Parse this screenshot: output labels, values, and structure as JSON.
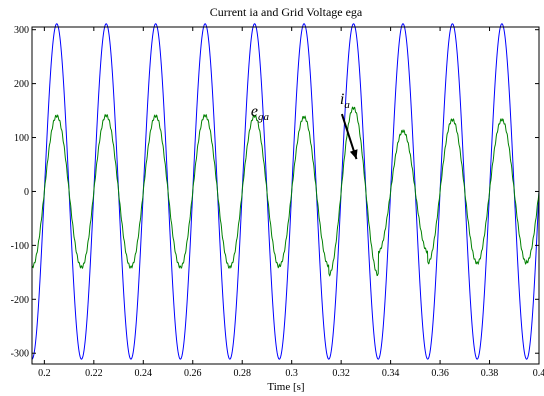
{
  "chart_data": {
    "type": "line",
    "title": "Current ia and Grid Voltage ega",
    "xlabel": "Time [s]",
    "ylabel": "",
    "xlim": [
      0.195,
      0.4
    ],
    "ylim": [
      -320,
      305
    ],
    "x_ticks": [
      0.2,
      0.22,
      0.24,
      0.26,
      0.28,
      0.3,
      0.32,
      0.34,
      0.36,
      0.38,
      0.4
    ],
    "x_tick_labels": [
      "0.2",
      "0.22",
      "0.24",
      "0.26",
      "0.28",
      "0.3",
      "0.32",
      "0.34",
      "0.36",
      "0.38",
      "0.4"
    ],
    "y_ticks": [
      -300,
      -200,
      -100,
      0,
      100,
      200,
      300
    ],
    "y_tick_labels": [
      "-300",
      "-200",
      "-100",
      "0",
      "100",
      "200",
      "300"
    ],
    "grid": false,
    "series": [
      {
        "key": "voltage",
        "color": "#0000ff",
        "waveform": "sine",
        "frequency_hz": 50,
        "amplitude": 311,
        "phase_deg": 0
      },
      {
        "key": "current",
        "color": "#008000",
        "waveform": "sine",
        "frequency_hz": 50,
        "amplitude": 140,
        "phase_deg": 0,
        "peak_values": [
          140,
          141,
          140,
          141,
          140,
          138,
          155,
          112,
          133,
          133,
          131
        ]
      }
    ],
    "annotations": [
      {
        "key": "ega",
        "label": "e",
        "subscript": "ga",
        "x": 0.2835,
        "y": 140,
        "points_to_series": "voltage"
      },
      {
        "key": "ia",
        "label": "i",
        "subscript": "a",
        "x": 0.3195,
        "y": 162,
        "points_to_series": "current",
        "arrow_to": {
          "x": 0.3262,
          "y": 60
        }
      }
    ]
  }
}
